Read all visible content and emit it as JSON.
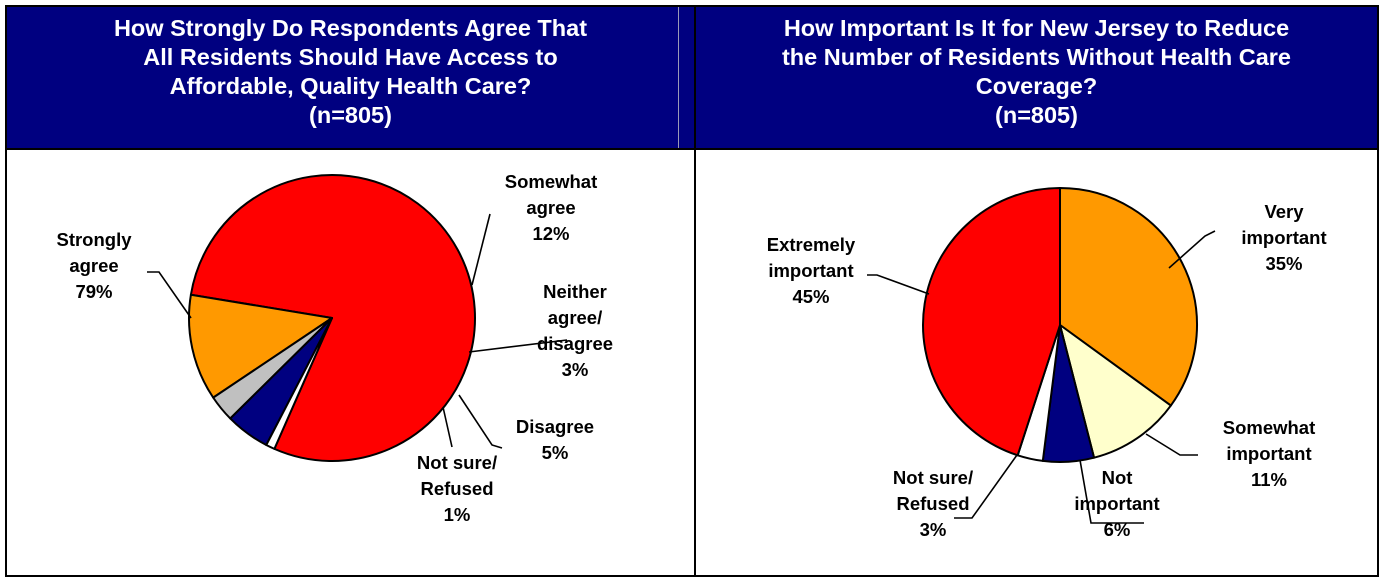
{
  "chart_data": [
    {
      "type": "pie",
      "title_lines": [
        "How Strongly Do Respondents Agree That",
        "All Residents Should Have Access to",
        "Affordable, Quality Health Care?",
        "(n=805)"
      ],
      "slices": [
        {
          "label_lines": [
            "Strongly",
            "agree",
            "79%"
          ],
          "value": 79,
          "color": "#ff0000"
        },
        {
          "label_lines": [
            "Somewhat",
            "agree",
            "12%"
          ],
          "value": 12,
          "color": "#ff9900"
        },
        {
          "label_lines": [
            "Neither",
            "agree/",
            "disagree",
            "3%"
          ],
          "value": 3,
          "color": "#c0c0c0"
        },
        {
          "label_lines": [
            "Disagree",
            "5%"
          ],
          "value": 5,
          "color": "#000080"
        },
        {
          "label_lines": [
            "Not sure/",
            "Refused",
            "1%"
          ],
          "value": 1,
          "color": "#ffffff"
        }
      ]
    },
    {
      "type": "pie",
      "title_lines": [
        "How Important Is It for New Jersey to Reduce",
        "the Number of Residents Without Health Care",
        "Coverage?",
        "(n=805)"
      ],
      "slices": [
        {
          "label_lines": [
            "Very",
            "important",
            "35%"
          ],
          "value": 35,
          "color": "#ff9900"
        },
        {
          "label_lines": [
            "Somewhat",
            "important",
            "11%"
          ],
          "value": 11,
          "color": "#ffffcc"
        },
        {
          "label_lines": [
            "Not",
            "important",
            "6%"
          ],
          "value": 6,
          "color": "#000080"
        },
        {
          "label_lines": [
            "Not sure/",
            "Refused",
            "3%"
          ],
          "value": 3,
          "color": "#ffffff"
        },
        {
          "label_lines": [
            "Extremely",
            "important",
            "45%"
          ],
          "value": 45,
          "color": "#ff0000"
        }
      ]
    }
  ]
}
